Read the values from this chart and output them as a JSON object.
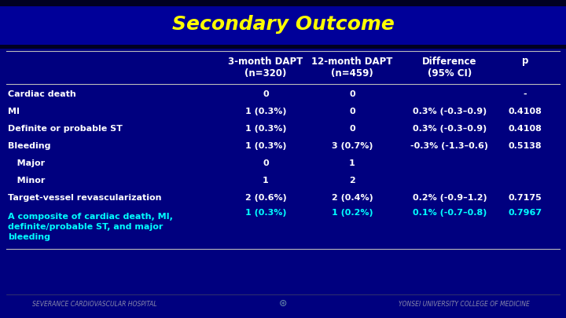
{
  "title": "Secondary Outcome",
  "title_color": "#FFFF00",
  "title_fontsize": 18,
  "bg_color": "#00007F",
  "title_stripe_color": "#0000AA",
  "top_bar_color": "#000033",
  "header_line_color": "#CCCCCC",
  "col_headers_line1": [
    "3-month DAPT",
    "12-month DAPT",
    "Difference",
    "p"
  ],
  "col_headers_line2": [
    "(n=320)",
    "(n=459)",
    "(95% CI)",
    ""
  ],
  "col_header_color": "#FFFFFF",
  "col_header_fontsize": 8.5,
  "rows": [
    {
      "label": "Cardiac death",
      "col1": "0",
      "col2": "0",
      "col3": "",
      "col4": "-",
      "label_color": "#FFFFFF",
      "data_color": "#FFFFFF",
      "indent": false,
      "multiline": false
    },
    {
      "label": "MI",
      "col1": "1 (0.3%)",
      "col2": "0",
      "col3": "0.3% (-0.3–0.9)",
      "col4": "0.4108",
      "label_color": "#FFFFFF",
      "data_color": "#FFFFFF",
      "indent": false,
      "multiline": false
    },
    {
      "label": "Definite or probable ST",
      "col1": "1 (0.3%)",
      "col2": "0",
      "col3": "0.3% (-0.3–0.9)",
      "col4": "0.4108",
      "label_color": "#FFFFFF",
      "data_color": "#FFFFFF",
      "indent": false,
      "multiline": false
    },
    {
      "label": "Bleeding",
      "col1": "1 (0.3%)",
      "col2": "3 (0.7%)",
      "col3": "-0.3% (-1.3–0.6)",
      "col4": "0.5138",
      "label_color": "#FFFFFF",
      "data_color": "#FFFFFF",
      "indent": false,
      "multiline": false
    },
    {
      "label": "   Major",
      "col1": "0",
      "col2": "1",
      "col3": "",
      "col4": "",
      "label_color": "#FFFFFF",
      "data_color": "#FFFFFF",
      "indent": false,
      "multiline": false
    },
    {
      "label": "   Minor",
      "col1": "1",
      "col2": "2",
      "col3": "",
      "col4": "",
      "label_color": "#FFFFFF",
      "data_color": "#FFFFFF",
      "indent": false,
      "multiline": false
    },
    {
      "label": "Target-vessel revascularization",
      "col1": "2 (0.6%)",
      "col2": "2 (0.4%)",
      "col3": "0.2% (-0.9–1.2)",
      "col4": "0.7175",
      "label_color": "#FFFFFF",
      "data_color": "#FFFFFF",
      "indent": false,
      "multiline": false
    },
    {
      "label": "A composite of cardiac death, MI,\ndefinite/probable ST, and major\nbleeding",
      "col1": "1 (0.3%)",
      "col2": "1 (0.2%)",
      "col3": "0.1% (-0.7–0.8)",
      "col4": "0.7967",
      "label_color": "#00FFFF",
      "data_color": "#00FFFF",
      "indent": false,
      "multiline": true
    }
  ],
  "row_fontsize": 8.0,
  "footer_left": "SEVERANCE CARDIOVASCULAR HOSPITAL",
  "footer_right": "YONSEI UNIVERSITY COLLEGE OF MEDICINE",
  "footer_color": "#8888AA",
  "footer_fontsize": 5.5
}
